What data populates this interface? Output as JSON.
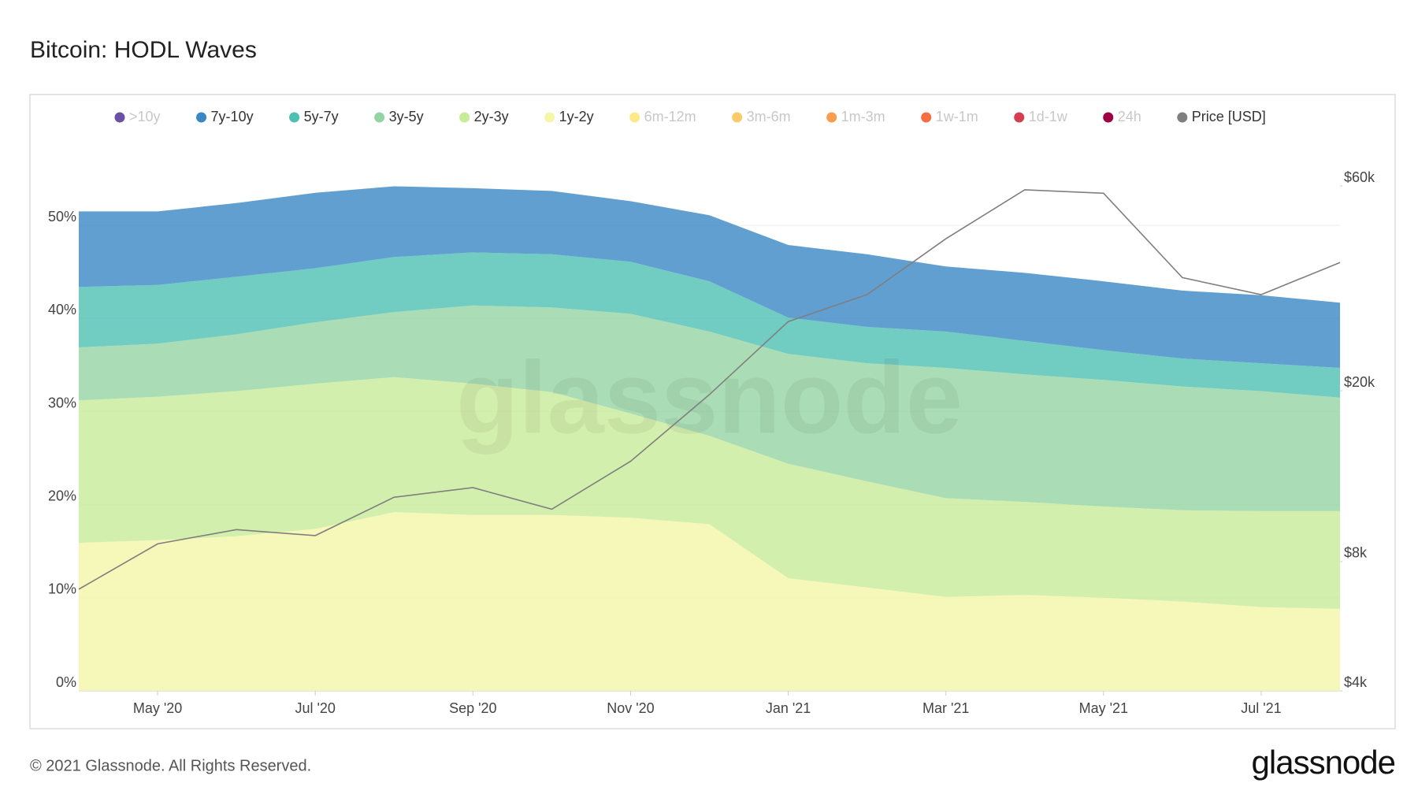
{
  "chart_data": {
    "type": "stacked-area",
    "title": "Bitcoin: HODL Waves",
    "watermark": "glassnode",
    "x": [
      "2020-04",
      "2020-05",
      "2020-06",
      "2020-07",
      "2020-08",
      "2020-09",
      "2020-10",
      "2020-11",
      "2020-12",
      "2021-01",
      "2021-02",
      "2021-03",
      "2021-04",
      "2021-05",
      "2021-06",
      "2021-07",
      "2021-08"
    ],
    "xlim": [
      "2020-04",
      "2021-08"
    ],
    "xticks": [
      {
        "value": "2020-05",
        "label": "May '20"
      },
      {
        "value": "2020-07",
        "label": "Jul '20"
      },
      {
        "value": "2020-09",
        "label": "Sep '20"
      },
      {
        "value": "2020-11",
        "label": "Nov '20"
      },
      {
        "value": "2021-01",
        "label": "Jan '21"
      },
      {
        "value": "2021-03",
        "label": "Mar '21"
      },
      {
        "value": "2021-05",
        "label": "May '21"
      },
      {
        "value": "2021-07",
        "label": "Jul '21"
      }
    ],
    "ylim": [
      0,
      60
    ],
    "yticks": [
      {
        "value": 0,
        "label": "0%"
      },
      {
        "value": 10,
        "label": "10%"
      },
      {
        "value": 20,
        "label": "20%"
      },
      {
        "value": 30,
        "label": "30%"
      },
      {
        "value": 40,
        "label": "40%"
      },
      {
        "value": 50,
        "label": "50%"
      }
    ],
    "y2lim": [
      4000,
      80000
    ],
    "y2log": true,
    "y2ticks": [
      {
        "value": 4000,
        "label": "$4k"
      },
      {
        "value": 8000,
        "label": "$8k"
      },
      {
        "value": 20000,
        "label": "$20k"
      },
      {
        "value": 60000,
        "label": "$60k"
      }
    ],
    "grid": true,
    "legend": "top",
    "series": [
      {
        "name": ">10y",
        "color": "#6a51a3",
        "visible": false
      },
      {
        "name": "7y-10y",
        "color": "#3a87c5",
        "visible": true,
        "values": [
          8.1,
          7.9,
          7.9,
          8.1,
          7.6,
          6.9,
          6.8,
          6.5,
          7.1,
          7.8,
          7.8,
          7.0,
          7.3,
          7.4,
          7.3,
          7.3,
          7.0
        ]
      },
      {
        "name": "5y-7y",
        "color": "#4dbfb3",
        "visible": true,
        "values": [
          6.5,
          6.3,
          6.2,
          5.8,
          5.9,
          5.7,
          5.7,
          5.6,
          5.4,
          3.9,
          3.9,
          3.9,
          3.6,
          3.2,
          3.0,
          3.0,
          3.2
        ]
      },
      {
        "name": "3y-5y",
        "color": "#95d4a2",
        "visible": true,
        "values": [
          5.7,
          5.7,
          6.1,
          6.6,
          7.0,
          8.4,
          9.1,
          10.7,
          11.2,
          11.8,
          12.7,
          14.0,
          13.7,
          13.6,
          13.3,
          12.9,
          12.2
        ]
      },
      {
        "name": "2y-3y",
        "color": "#c8eb98",
        "visible": true,
        "values": [
          15.3,
          15.4,
          15.6,
          15.6,
          14.5,
          14.1,
          13.2,
          11.2,
          9.5,
          12.3,
          11.4,
          10.6,
          10.0,
          9.8,
          9.8,
          10.3,
          10.5
        ]
      },
      {
        "name": "1y-2y",
        "color": "#f4f6a8",
        "visible": true,
        "values": [
          15.9,
          16.2,
          16.6,
          17.4,
          19.2,
          18.9,
          18.9,
          18.6,
          17.9,
          12.1,
          11.1,
          10.1,
          10.3,
          10.0,
          9.6,
          9.0,
          8.8
        ]
      },
      {
        "name": "6m-12m",
        "color": "#fde987",
        "visible": false
      },
      {
        "name": "3m-6m",
        "color": "#fdca6a",
        "visible": false
      },
      {
        "name": "1m-3m",
        "color": "#fb9d4f",
        "visible": false
      },
      {
        "name": "1w-1m",
        "color": "#f46d43",
        "visible": false
      },
      {
        "name": "1d-1w",
        "color": "#d53e4f",
        "visible": false
      },
      {
        "name": "24h",
        "color": "#9e0142",
        "visible": false
      },
      {
        "name": "Price [USD]",
        "color": "#7f7f7f",
        "visible": true,
        "axis": "y2",
        "line": true,
        "values": [
          6900,
          8800,
          9500,
          9200,
          11300,
          11900,
          10600,
          13700,
          19600,
          29000,
          33500,
          45200,
          58800,
          57700,
          36700,
          33500,
          39800
        ]
      }
    ]
  },
  "page": {
    "footer": "© 2021 Glassnode. All Rights Reserved.",
    "brand": "glassnode"
  }
}
